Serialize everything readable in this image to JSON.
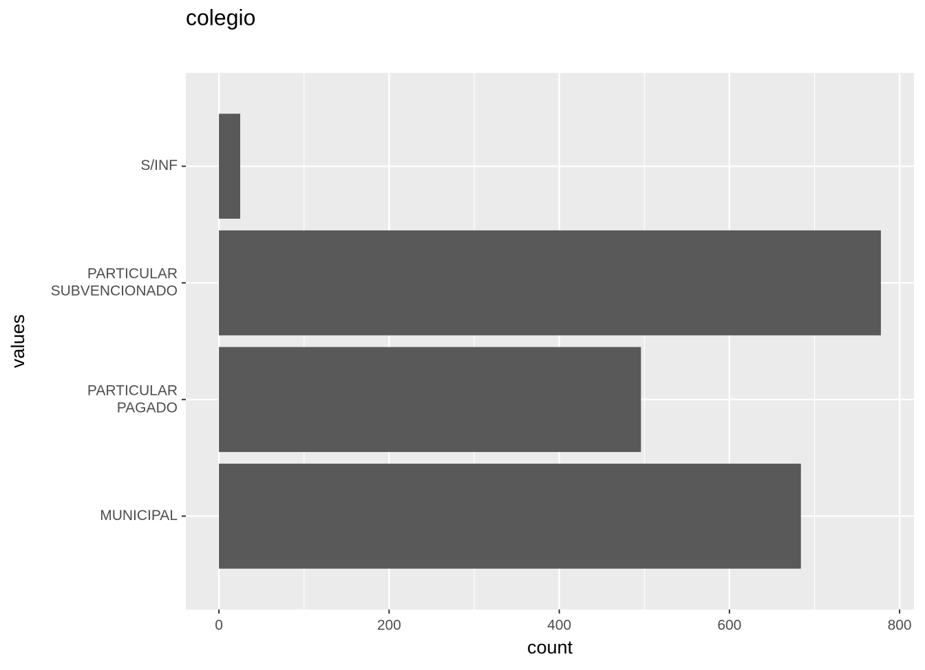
{
  "chart_data": {
    "type": "barh",
    "title": "colegio",
    "x_label": "count",
    "y_label": "values",
    "categories": [
      "MUNICIPAL",
      "PARTICULAR\nPAGADO",
      "PARTICULAR\nSUBVENCIONADO",
      "S/INF"
    ],
    "values": [
      684,
      496,
      778,
      25
    ],
    "color": "#595959",
    "xlim": [
      -38.9,
      816.9
    ],
    "xticks": [
      0,
      200,
      400,
      600,
      800
    ],
    "grid": true,
    "minor_grid": true
  }
}
